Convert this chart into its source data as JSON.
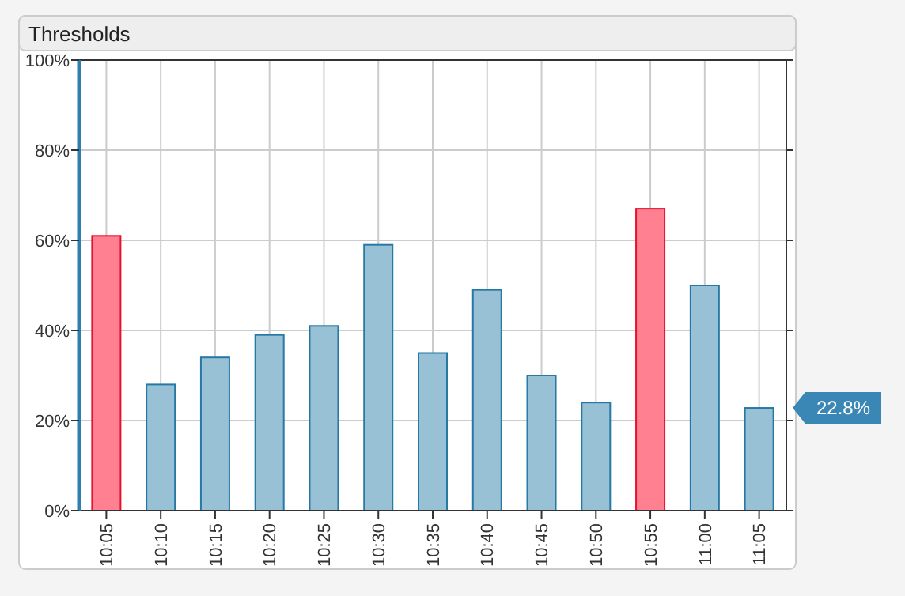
{
  "chart_data": {
    "type": "bar",
    "title": "Thresholds",
    "categories": [
      "10:05",
      "10:10",
      "10:15",
      "10:20",
      "10:25",
      "10:30",
      "10:35",
      "10:40",
      "10:45",
      "10:50",
      "10:55",
      "11:00",
      "11:05"
    ],
    "values": [
      61,
      28,
      34,
      39,
      41,
      59,
      35,
      49,
      30,
      24,
      67,
      50,
      22.8
    ],
    "colors": [
      "#ff8090",
      "#98c1d6",
      "#98c1d6",
      "#98c1d6",
      "#98c1d6",
      "#98c1d6",
      "#98c1d6",
      "#98c1d6",
      "#98c1d6",
      "#98c1d6",
      "#ff8090",
      "#98c1d6",
      "#98c1d6"
    ],
    "ylim": [
      0,
      100
    ],
    "yticks": [
      {
        "value": 0,
        "label": "0%"
      },
      {
        "value": 20,
        "label": "20%"
      },
      {
        "value": 40,
        "label": "40%"
      },
      {
        "value": 60,
        "label": "60%"
      },
      {
        "value": 80,
        "label": "80%"
      },
      {
        "value": 100,
        "label": "100%"
      }
    ],
    "grid": true,
    "annotations": [
      "22.8%"
    ]
  }
}
